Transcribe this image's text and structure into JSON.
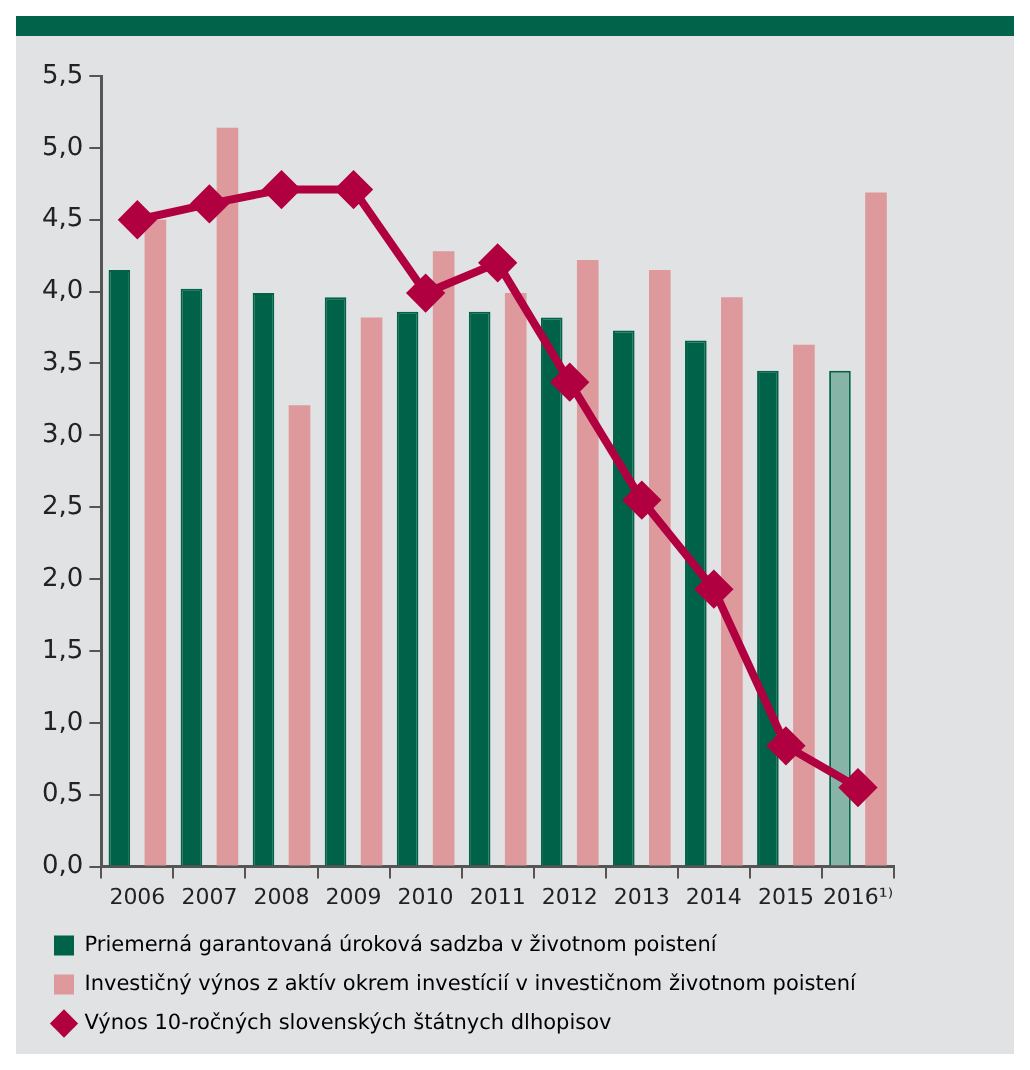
{
  "chart_data": {
    "type": "bar",
    "categories": [
      "2006",
      "2007",
      "2008",
      "2009",
      "2010",
      "2011",
      "2012",
      "2013",
      "2014",
      "2015",
      "2016¹⁾"
    ],
    "series": [
      {
        "name": "Priemerná garantovaná úroková sadzba v životnom poistení",
        "color": "#006349",
        "colors": [
          "#006349",
          "#006349",
          "#006349",
          "#006349",
          "#006349",
          "#006349",
          "#006349",
          "#006349",
          "#006349",
          "#006349",
          "#86b4a6"
        ],
        "values": [
          4.15,
          4.02,
          3.99,
          3.96,
          3.86,
          3.86,
          3.82,
          3.73,
          3.66,
          3.45,
          3.45
        ]
      },
      {
        "name": "Investičný výnos z aktív okrem investícií v investičnom životnom poistení",
        "color": "#dd999b",
        "values": [
          4.5,
          5.14,
          3.21,
          3.82,
          4.28,
          3.99,
          4.22,
          4.15,
          3.96,
          3.63,
          4.69
        ]
      },
      {
        "name": "Výnos 10-ročných slovenských štátnych dlhopisov",
        "type": "line",
        "color": "#b0003f",
        "marker": "diamond",
        "values": [
          4.5,
          4.61,
          4.71,
          4.71,
          3.99,
          4.2,
          3.37,
          2.55,
          1.93,
          0.84,
          0.55
        ]
      }
    ],
    "ylim": [
      0,
      5.5
    ],
    "yticks": [
      {
        "value": 0,
        "label": "0,0"
      },
      {
        "value": 0.5,
        "label": "0,5"
      },
      {
        "value": 1,
        "label": "1,0"
      },
      {
        "value": 1.5,
        "label": "1,5"
      },
      {
        "value": 2,
        "label": "2,0"
      },
      {
        "value": 2.5,
        "label": "2,5"
      },
      {
        "value": 3,
        "label": "3,0"
      },
      {
        "value": 3.5,
        "label": "3,5"
      },
      {
        "value": 4,
        "label": "4,0"
      },
      {
        "value": 4.5,
        "label": "4,5"
      },
      {
        "value": 5,
        "label": "5,0"
      },
      {
        "value": 5.5,
        "label": "5,5"
      }
    ],
    "grid": false,
    "legend": "bottom"
  }
}
